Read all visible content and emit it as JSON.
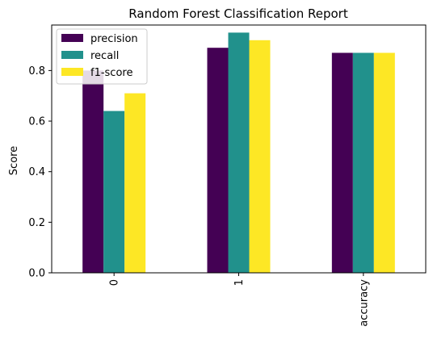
{
  "chart_data": {
    "type": "bar",
    "title": "Random Forest Classification Report",
    "xlabel": "",
    "ylabel": "Score",
    "categories": [
      "0",
      "1",
      "accuracy"
    ],
    "series": [
      {
        "name": "precision",
        "color": "#440154",
        "values": [
          0.8,
          0.89,
          0.87
        ]
      },
      {
        "name": "recall",
        "color": "#21918c",
        "values": [
          0.64,
          0.95,
          0.87
        ]
      },
      {
        "name": "f1-score",
        "color": "#fde725",
        "values": [
          0.71,
          0.92,
          0.87
        ]
      }
    ],
    "ylim": [
      0,
      0.98
    ],
    "yticks": [
      0.0,
      0.2,
      0.4,
      0.6,
      0.8
    ],
    "ytick_labels": [
      "0.0",
      "0.2",
      "0.4",
      "0.6",
      "0.8"
    ],
    "x_tick_rotation": "vertical",
    "grid": false,
    "legend": "top-left"
  }
}
